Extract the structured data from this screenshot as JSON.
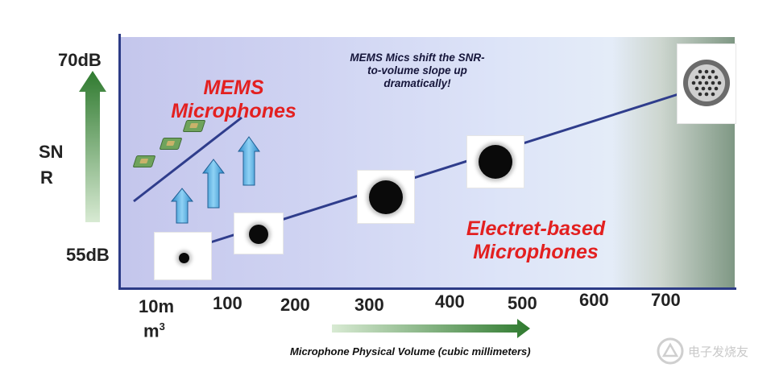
{
  "y_axis": {
    "top_label": "70dB",
    "bottom_label": "55dB",
    "title_line1": "SN",
    "title_line2": "R"
  },
  "x_axis": {
    "ticks": [
      "10m",
      "100",
      "200",
      "300",
      "400",
      "500",
      "600",
      "700"
    ],
    "unit": "m",
    "unit_superscript": "3",
    "title": "Microphone Physical Volume (cubic millimeters)"
  },
  "labels": {
    "mems_line1": "MEMS",
    "mems_line2": "Microphones",
    "electret_line1": "Electret-based",
    "electret_line2": "Microphones"
  },
  "annotation": {
    "line1": "MEMS Mics shift the SNR-",
    "line2": "to-volume slope up",
    "line3": "dramatically!"
  },
  "watermark": "电子发烧友",
  "colors": {
    "axis": "#2c3b86",
    "trend_line": "#2f3d8c",
    "label_red": "#e32020",
    "arrow_blue": "#5bb4ea",
    "arrow_green": "#2f7a2f"
  }
}
